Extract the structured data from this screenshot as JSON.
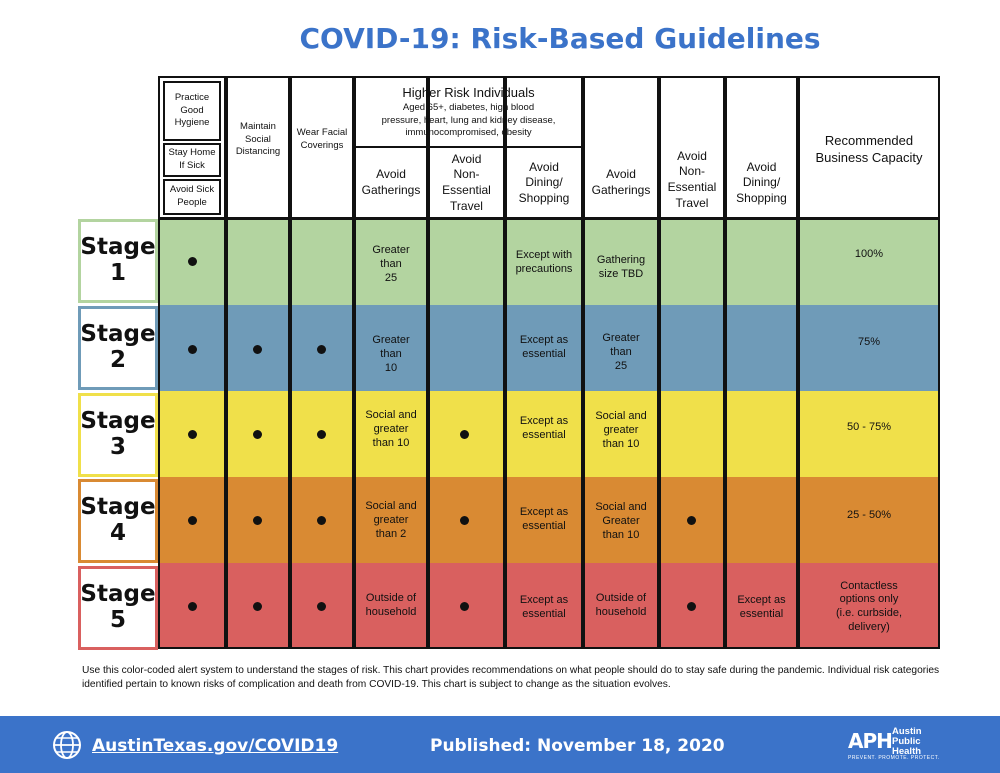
{
  "title": "COVID-19: Risk-Based Guidelines",
  "colors": {
    "title_blue": "#3b73c9",
    "stage1": "#b3d4a0",
    "stage2": "#6f9bb8",
    "stage3": "#f0e04a",
    "stage4": "#d98a33",
    "stage5": "#d9605f"
  },
  "headers": {
    "hygiene": "Practice\nGood\nHygiene",
    "stay_home": "Stay Home\nIf Sick",
    "avoid_sick": "Avoid Sick\nPeople",
    "distancing": "Maintain\nSocial\nDistancing",
    "coverings": "Wear Facial\nCoverings",
    "higher_risk_title": "Higher Risk Individuals",
    "higher_risk_detail": "Aged 65+, diabetes, high blood\npressure, heart, lung and kidney disease,\nimmunocompromised, obesity",
    "hr_gatherings": "Avoid\nGatherings",
    "hr_travel": "Avoid\nNon-\nEssential\nTravel",
    "hr_dining": "Avoid\nDining/\nShopping",
    "gatherings": "Avoid\nGatherings",
    "travel": "Avoid\nNon-\nEssential\nTravel",
    "dining": "Avoid\nDining/\nShopping",
    "capacity": "Recommended\nBusiness Capacity"
  },
  "stages": [
    {
      "label": "Stage\n1",
      "hr_gatherings": "Greater\nthan\n25",
      "hr_dining": "Except with\nprecautions",
      "gatherings": "Gathering\nsize TBD",
      "capacity": "100%"
    },
    {
      "label": "Stage\n2",
      "hr_gatherings": "Greater\nthan\n10",
      "hr_dining": "Except as\nessential",
      "gatherings": "Greater\nthan\n25",
      "capacity": "75%"
    },
    {
      "label": "Stage\n3",
      "hr_gatherings": "Social and\ngreater\nthan 10",
      "hr_dining": "Except as\nessential",
      "gatherings": "Social and\ngreater\nthan 10",
      "capacity": "50 - 75%"
    },
    {
      "label": "Stage\n4",
      "hr_gatherings": "Social and\ngreater\nthan 2",
      "hr_dining": "Except as\nessential",
      "gatherings": "Social and\nGreater\nthan 10",
      "capacity": "25 - 50%"
    },
    {
      "label": "Stage\n5",
      "hr_gatherings": "Outside of\nhousehold",
      "hr_dining": "Except as\nessential",
      "gatherings": "Outside of\nhousehold",
      "dining": "Except as\nessential",
      "capacity": "Contactless\noptions only\n(i.e. curbside,\ndelivery)"
    }
  ],
  "footnote": "Use this color-coded alert system to understand the stages of risk. This chart provides recommendations on what people should do to stay safe during the pandemic. Individual risk categories identified pertain to known risks of complication and death from COVID-19. This chart is subject to change as the situation evolves.",
  "footer": {
    "link": "AustinTexas.gov/COVID19",
    "published": "Published: November 18, 2020",
    "logo_mark": "APH",
    "logo_name": "Austin\nPublic\nHealth",
    "logo_tagline": "PREVENT. PROMOTE. PROTECT."
  }
}
